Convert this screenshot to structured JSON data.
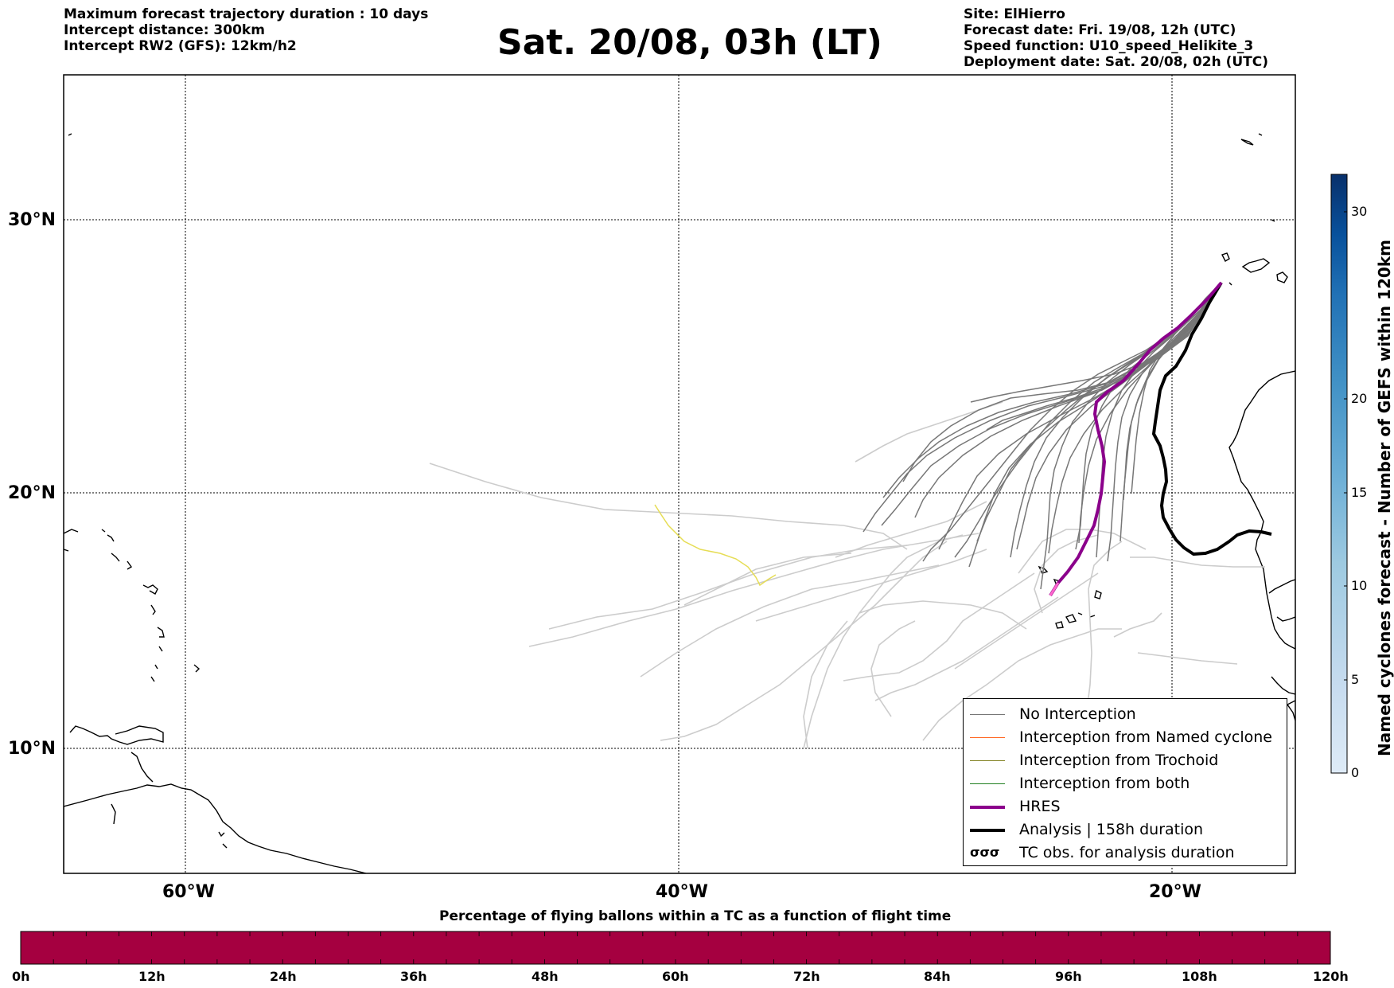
{
  "header": {
    "left": [
      "Maximum forecast trajectory duration : 10 days",
      "Intercept distance: 300km",
      "Intercept RW2 (GFS):  12km/h2"
    ],
    "title": "Sat. 20/08, 03h (LT)",
    "right": [
      "Site: ElHierro",
      "Forecast date: Fri. 19/08, 12h (UTC)",
      "Speed function: U10_speed_Helikite_3",
      "Deployment date: Sat. 20/08, 02h (UTC)"
    ]
  },
  "map": {
    "lon_range": [
      -65,
      15
    ],
    "lat_range": [
      5,
      35
    ],
    "lat_labels": [
      "30°N",
      "20°N",
      "10°N"
    ],
    "lon_labels": [
      "60°W",
      "40°W",
      "20°W"
    ],
    "colors": {
      "no_interception": "#777777",
      "ensemble_late": "#cccccc",
      "named_cyclone": "#ff6620",
      "trochoid": "#808020",
      "both": "#208020",
      "hres": "#8b008b",
      "analysis": "#000000"
    }
  },
  "legend": {
    "items": [
      {
        "label": "No Interception",
        "style": "thin-gray"
      },
      {
        "label": "Interception from Named cyclone",
        "style": "thin-orange"
      },
      {
        "label": "Interception from Trochoid",
        "style": "thin-olive"
      },
      {
        "label": "Interception from both",
        "style": "thin-green"
      },
      {
        "label": "HRES",
        "style": "thick-purple"
      },
      {
        "label": "Analysis | 158h duration",
        "style": "thick-black"
      },
      {
        "label": "TC obs. for analysis duration",
        "style": "cyclone-symbols"
      }
    ]
  },
  "colorbar_right": {
    "title": "Named cyclones forecast - Number of GEFS within 120km",
    "ticks": [
      "0",
      "5",
      "10",
      "15",
      "20",
      "30"
    ],
    "range": [
      0,
      32
    ],
    "colors": [
      "#deebf7",
      "#c6dbef",
      "#9ecae1",
      "#6baed6",
      "#4292c6",
      "#2171b5",
      "#08519c",
      "#08306b"
    ]
  },
  "colorbar_bottom": {
    "title": "Percentage of flying ballons within a TC as a function of flight time",
    "ticks": [
      "0h",
      "12h",
      "24h",
      "36h",
      "48h",
      "60h",
      "72h",
      "84h",
      "96h",
      "108h",
      "120h"
    ],
    "fill_color": "#a50040",
    "value_percent_all_hours": 0
  }
}
